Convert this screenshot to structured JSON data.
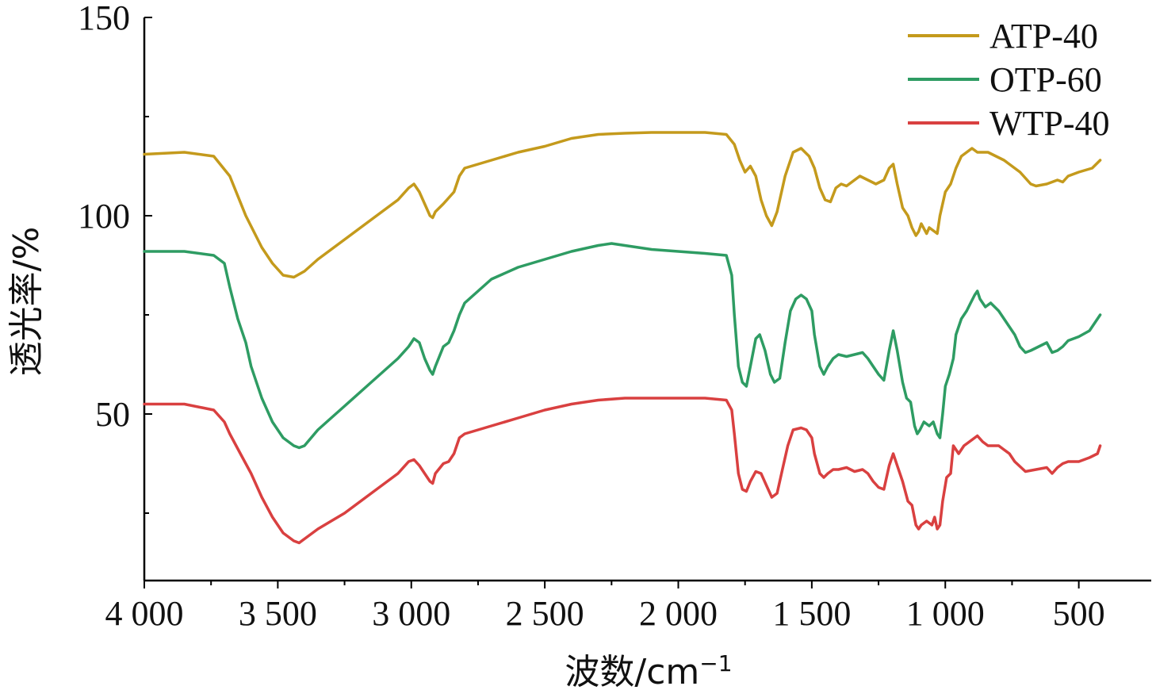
{
  "chart_data": {
    "type": "line",
    "xlabel": "波数/cm",
    "xlabel_sup": "−1",
    "ylabel": "透光率/%",
    "xlim": [
      4000,
      380
    ],
    "ylim": [
      8,
      150
    ],
    "x_ticks": [
      {
        "value": 4000,
        "label": "4 000"
      },
      {
        "value": 3500,
        "label": "3 500"
      },
      {
        "value": 3000,
        "label": "3 000"
      },
      {
        "value": 2500,
        "label": "2 500"
      },
      {
        "value": 2000,
        "label": "2 000"
      },
      {
        "value": 1500,
        "label": "1 500"
      },
      {
        "value": 1000,
        "label": "1 000"
      },
      {
        "value": 500,
        "label": "500"
      }
    ],
    "x_minor_ticks": [
      3750,
      3250,
      2750,
      2250,
      1750,
      1250,
      750
    ],
    "y_ticks": [
      {
        "value": 150,
        "label": "150"
      },
      {
        "value": 100,
        "label": "100"
      },
      {
        "value": 50,
        "label": "50"
      }
    ],
    "y_minor_ticks": [
      125,
      75,
      25
    ],
    "legend_position": "top-right",
    "series": [
      {
        "name": "ATP-40",
        "color": "#c49a1c",
        "points": [
          [
            4000,
            115.5
          ],
          [
            3850,
            116
          ],
          [
            3740,
            115
          ],
          [
            3680,
            110
          ],
          [
            3620,
            100
          ],
          [
            3560,
            92
          ],
          [
            3520,
            88
          ],
          [
            3480,
            85
          ],
          [
            3440,
            84.5
          ],
          [
            3400,
            86
          ],
          [
            3350,
            89
          ],
          [
            3250,
            94
          ],
          [
            3150,
            99
          ],
          [
            3050,
            104
          ],
          [
            3010,
            107
          ],
          [
            2990,
            108
          ],
          [
            2970,
            106
          ],
          [
            2950,
            103
          ],
          [
            2930,
            100
          ],
          [
            2920,
            99.5
          ],
          [
            2910,
            101
          ],
          [
            2880,
            103
          ],
          [
            2860,
            104.5
          ],
          [
            2840,
            106
          ],
          [
            2820,
            110
          ],
          [
            2800,
            112
          ],
          [
            2700,
            114
          ],
          [
            2600,
            116
          ],
          [
            2500,
            117.5
          ],
          [
            2400,
            119.5
          ],
          [
            2300,
            120.5
          ],
          [
            2200,
            120.8
          ],
          [
            2100,
            121
          ],
          [
            2000,
            121
          ],
          [
            1900,
            121
          ],
          [
            1820,
            120.5
          ],
          [
            1790,
            118
          ],
          [
            1770,
            114
          ],
          [
            1750,
            111
          ],
          [
            1730,
            112.5
          ],
          [
            1710,
            110
          ],
          [
            1690,
            104
          ],
          [
            1670,
            100
          ],
          [
            1650,
            97.5
          ],
          [
            1630,
            101
          ],
          [
            1600,
            110
          ],
          [
            1570,
            116
          ],
          [
            1540,
            117
          ],
          [
            1510,
            115
          ],
          [
            1490,
            112
          ],
          [
            1470,
            107
          ],
          [
            1450,
            104
          ],
          [
            1430,
            103.5
          ],
          [
            1410,
            107
          ],
          [
            1390,
            108
          ],
          [
            1370,
            107.5
          ],
          [
            1350,
            108.5
          ],
          [
            1320,
            110
          ],
          [
            1290,
            109
          ],
          [
            1260,
            108
          ],
          [
            1230,
            109
          ],
          [
            1210,
            112
          ],
          [
            1195,
            113
          ],
          [
            1180,
            108
          ],
          [
            1160,
            102
          ],
          [
            1140,
            100
          ],
          [
            1125,
            97
          ],
          [
            1110,
            95
          ],
          [
            1100,
            96
          ],
          [
            1090,
            98
          ],
          [
            1070,
            95.5
          ],
          [
            1060,
            97
          ],
          [
            1040,
            96
          ],
          [
            1030,
            95.5
          ],
          [
            1020,
            100
          ],
          [
            1000,
            106
          ],
          [
            980,
            108
          ],
          [
            960,
            112
          ],
          [
            940,
            115
          ],
          [
            900,
            117
          ],
          [
            880,
            116
          ],
          [
            840,
            116
          ],
          [
            780,
            114
          ],
          [
            720,
            111
          ],
          [
            680,
            108
          ],
          [
            660,
            107.5
          ],
          [
            620,
            108
          ],
          [
            580,
            109
          ],
          [
            560,
            108.5
          ],
          [
            540,
            110
          ],
          [
            500,
            111
          ],
          [
            450,
            112
          ],
          [
            420,
            114
          ]
        ]
      },
      {
        "name": "OTP-60",
        "color": "#2e9c63",
        "points": [
          [
            4000,
            91
          ],
          [
            3850,
            91
          ],
          [
            3740,
            90
          ],
          [
            3700,
            88
          ],
          [
            3680,
            82
          ],
          [
            3650,
            74
          ],
          [
            3620,
            68
          ],
          [
            3600,
            62
          ],
          [
            3560,
            54
          ],
          [
            3520,
            48
          ],
          [
            3480,
            44
          ],
          [
            3440,
            42
          ],
          [
            3420,
            41.5
          ],
          [
            3400,
            42
          ],
          [
            3350,
            46
          ],
          [
            3300,
            49
          ],
          [
            3250,
            52
          ],
          [
            3150,
            58
          ],
          [
            3050,
            64
          ],
          [
            3010,
            67
          ],
          [
            2990,
            69
          ],
          [
            2970,
            68
          ],
          [
            2950,
            64
          ],
          [
            2930,
            61
          ],
          [
            2920,
            60
          ],
          [
            2910,
            62
          ],
          [
            2880,
            67
          ],
          [
            2860,
            68
          ],
          [
            2840,
            71
          ],
          [
            2820,
            75
          ],
          [
            2800,
            78
          ],
          [
            2700,
            84
          ],
          [
            2600,
            87
          ],
          [
            2500,
            89
          ],
          [
            2400,
            91
          ],
          [
            2300,
            92.5
          ],
          [
            2250,
            93
          ],
          [
            2200,
            92.5
          ],
          [
            2100,
            91.5
          ],
          [
            2000,
            91
          ],
          [
            1900,
            90.5
          ],
          [
            1820,
            90
          ],
          [
            1800,
            85
          ],
          [
            1790,
            75
          ],
          [
            1775,
            62
          ],
          [
            1760,
            58
          ],
          [
            1745,
            57
          ],
          [
            1730,
            62
          ],
          [
            1710,
            69
          ],
          [
            1695,
            70
          ],
          [
            1675,
            66
          ],
          [
            1655,
            60
          ],
          [
            1640,
            58
          ],
          [
            1620,
            59
          ],
          [
            1600,
            68
          ],
          [
            1580,
            76
          ],
          [
            1560,
            79
          ],
          [
            1540,
            80
          ],
          [
            1520,
            79
          ],
          [
            1500,
            76
          ],
          [
            1490,
            70
          ],
          [
            1470,
            62
          ],
          [
            1455,
            60
          ],
          [
            1440,
            62
          ],
          [
            1420,
            64
          ],
          [
            1400,
            65
          ],
          [
            1370,
            64.5
          ],
          [
            1340,
            65
          ],
          [
            1310,
            65.5
          ],
          [
            1290,
            64
          ],
          [
            1270,
            62
          ],
          [
            1250,
            60
          ],
          [
            1230,
            58.5
          ],
          [
            1210,
            66
          ],
          [
            1195,
            71
          ],
          [
            1180,
            66
          ],
          [
            1160,
            58
          ],
          [
            1145,
            54
          ],
          [
            1130,
            53
          ],
          [
            1115,
            47
          ],
          [
            1105,
            45
          ],
          [
            1095,
            46
          ],
          [
            1080,
            48
          ],
          [
            1060,
            47
          ],
          [
            1045,
            48
          ],
          [
            1030,
            45
          ],
          [
            1020,
            44
          ],
          [
            1010,
            50
          ],
          [
            1000,
            57
          ],
          [
            985,
            60
          ],
          [
            970,
            64
          ],
          [
            960,
            70
          ],
          [
            940,
            74
          ],
          [
            920,
            76
          ],
          [
            905,
            78
          ],
          [
            890,
            80
          ],
          [
            880,
            81
          ],
          [
            870,
            79
          ],
          [
            850,
            77
          ],
          [
            830,
            78
          ],
          [
            800,
            76
          ],
          [
            770,
            73
          ],
          [
            740,
            70
          ],
          [
            720,
            67
          ],
          [
            700,
            65.5
          ],
          [
            680,
            66
          ],
          [
            650,
            67
          ],
          [
            620,
            68
          ],
          [
            600,
            65.5
          ],
          [
            580,
            66
          ],
          [
            560,
            67
          ],
          [
            540,
            68.5
          ],
          [
            500,
            69.5
          ],
          [
            460,
            71
          ],
          [
            420,
            75
          ]
        ]
      },
      {
        "name": "WTP-40",
        "color": "#d94040",
        "points": [
          [
            4000,
            52.5
          ],
          [
            3850,
            52.5
          ],
          [
            3740,
            51
          ],
          [
            3700,
            48
          ],
          [
            3680,
            45
          ],
          [
            3640,
            40
          ],
          [
            3600,
            35
          ],
          [
            3560,
            29
          ],
          [
            3520,
            24
          ],
          [
            3480,
            20
          ],
          [
            3440,
            18
          ],
          [
            3420,
            17.5
          ],
          [
            3400,
            18.5
          ],
          [
            3350,
            21
          ],
          [
            3300,
            23
          ],
          [
            3250,
            25
          ],
          [
            3150,
            30
          ],
          [
            3050,
            35
          ],
          [
            3010,
            38
          ],
          [
            2990,
            38.5
          ],
          [
            2970,
            37
          ],
          [
            2950,
            35
          ],
          [
            2930,
            33
          ],
          [
            2920,
            32.5
          ],
          [
            2910,
            35
          ],
          [
            2880,
            37.5
          ],
          [
            2860,
            38
          ],
          [
            2840,
            40
          ],
          [
            2820,
            44
          ],
          [
            2800,
            45
          ],
          [
            2700,
            47
          ],
          [
            2600,
            49
          ],
          [
            2500,
            51
          ],
          [
            2400,
            52.5
          ],
          [
            2300,
            53.5
          ],
          [
            2200,
            54
          ],
          [
            2100,
            54
          ],
          [
            2000,
            54
          ],
          [
            1900,
            54
          ],
          [
            1820,
            53.5
          ],
          [
            1800,
            51
          ],
          [
            1790,
            45
          ],
          [
            1775,
            35
          ],
          [
            1760,
            31
          ],
          [
            1745,
            30.5
          ],
          [
            1730,
            33
          ],
          [
            1710,
            35.5
          ],
          [
            1690,
            35
          ],
          [
            1670,
            32
          ],
          [
            1650,
            29
          ],
          [
            1630,
            30
          ],
          [
            1610,
            36
          ],
          [
            1590,
            42
          ],
          [
            1570,
            46
          ],
          [
            1540,
            46.5
          ],
          [
            1520,
            46
          ],
          [
            1500,
            44
          ],
          [
            1490,
            40
          ],
          [
            1470,
            35
          ],
          [
            1455,
            34
          ],
          [
            1440,
            35
          ],
          [
            1420,
            36
          ],
          [
            1400,
            36
          ],
          [
            1370,
            36.5
          ],
          [
            1340,
            35.5
          ],
          [
            1310,
            36
          ],
          [
            1290,
            35
          ],
          [
            1270,
            33
          ],
          [
            1250,
            31.5
          ],
          [
            1230,
            31
          ],
          [
            1210,
            37
          ],
          [
            1195,
            40
          ],
          [
            1180,
            37
          ],
          [
            1160,
            33
          ],
          [
            1140,
            28
          ],
          [
            1125,
            27
          ],
          [
            1110,
            22
          ],
          [
            1100,
            21
          ],
          [
            1090,
            22
          ],
          [
            1070,
            23
          ],
          [
            1050,
            22
          ],
          [
            1040,
            24
          ],
          [
            1030,
            21
          ],
          [
            1020,
            22
          ],
          [
            1010,
            28
          ],
          [
            995,
            34
          ],
          [
            980,
            35
          ],
          [
            970,
            42
          ],
          [
            950,
            40
          ],
          [
            930,
            42
          ],
          [
            910,
            43
          ],
          [
            880,
            44.5
          ],
          [
            860,
            43
          ],
          [
            840,
            42
          ],
          [
            800,
            42
          ],
          [
            780,
            41
          ],
          [
            760,
            40
          ],
          [
            740,
            38
          ],
          [
            700,
            35.5
          ],
          [
            660,
            36
          ],
          [
            620,
            36.5
          ],
          [
            600,
            35
          ],
          [
            580,
            36.5
          ],
          [
            560,
            37.5
          ],
          [
            540,
            38
          ],
          [
            500,
            38
          ],
          [
            460,
            39
          ],
          [
            430,
            40
          ],
          [
            420,
            42
          ]
        ]
      }
    ]
  }
}
